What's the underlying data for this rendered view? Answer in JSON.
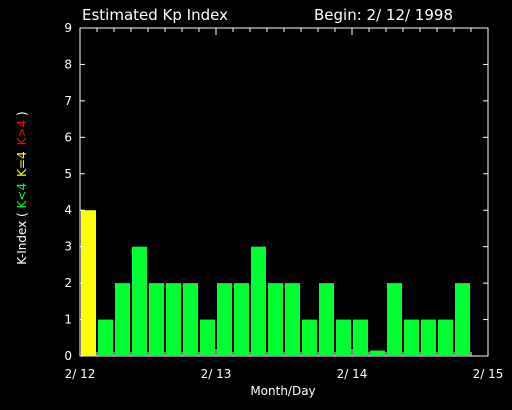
{
  "chart_data": {
    "type": "bar",
    "title": "Estimated Kp Index",
    "begin_label": "Begin: 2/ 12/ 1998",
    "xlabel": "Month/Day",
    "ylabel": {
      "prefix": "K-Index ( ",
      "green_part": "K<4",
      "yellow_part": "K=4",
      "red_part": "K>4",
      "suffix": " )"
    },
    "ylim": [
      0,
      9
    ],
    "yticks": [
      "0",
      "1",
      "2",
      "3",
      "4",
      "5",
      "6",
      "7",
      "8",
      "9"
    ],
    "xticks": [
      "2/ 12",
      "2/ 13",
      "2/ 14",
      "2/ 15"
    ],
    "bins_per_day": 8,
    "days": 3,
    "values": [
      4,
      1,
      2,
      3,
      2,
      2,
      2,
      1,
      2,
      2,
      3,
      2,
      2,
      1,
      2,
      1,
      1,
      0.15,
      2,
      1,
      1,
      1,
      2
    ],
    "colors": {
      "below_4": "#00ff33",
      "equal_4": "#ffff00",
      "above_4": "#ff0000",
      "background": "#000000",
      "axis": "#ffffff"
    },
    "grid": false
  }
}
